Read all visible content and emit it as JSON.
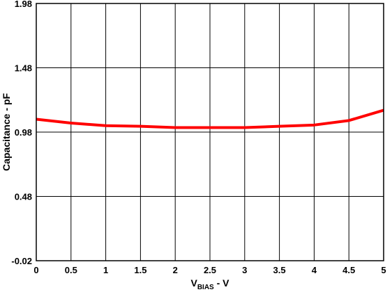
{
  "chart_data": {
    "type": "line",
    "title": "",
    "xlabel": {
      "main": "V",
      "sub": "BIAS",
      "suffix": " - V"
    },
    "ylabel": "Capacitance - pF",
    "xlim": [
      0,
      5
    ],
    "ylim": [
      -0.02,
      1.98
    ],
    "x_ticks": [
      0,
      0.5,
      1,
      1.5,
      2,
      2.5,
      3,
      3.5,
      4,
      4.5,
      5
    ],
    "x_tick_labels": [
      "0",
      "0.5",
      "1",
      "1.5",
      "2",
      "2.5",
      "3",
      "3.5",
      "4",
      "4.5",
      "5"
    ],
    "y_ticks": [
      -0.02,
      0.48,
      0.98,
      1.48,
      1.98
    ],
    "y_tick_labels": [
      "-0.02",
      "0.48",
      "0.98",
      "1.48",
      "1.98"
    ],
    "grid": true,
    "series": [
      {
        "color": "#ff0000",
        "x": [
          0,
          0.5,
          1,
          1.5,
          2,
          2.5,
          3,
          3.5,
          4,
          4.5,
          5
        ],
        "y": [
          1.08,
          1.05,
          1.03,
          1.025,
          1.015,
          1.015,
          1.015,
          1.025,
          1.035,
          1.07,
          1.15
        ]
      }
    ]
  }
}
